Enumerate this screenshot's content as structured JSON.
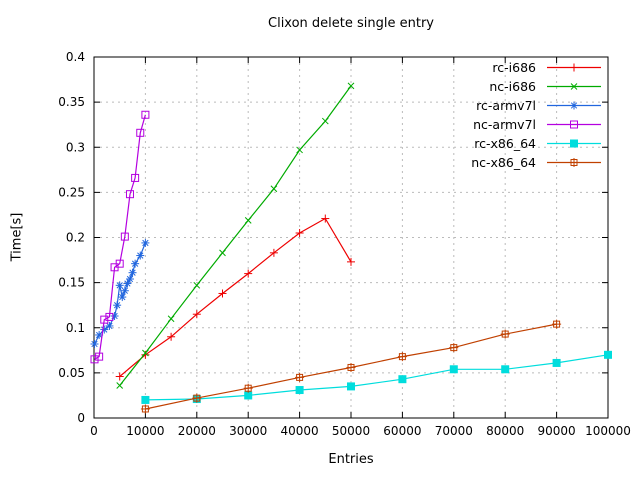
{
  "chart_data": {
    "type": "line",
    "title": "Clixon delete single entry",
    "xlabel": "Entries",
    "ylabel": "Time[s]",
    "xlim": [
      0,
      100000
    ],
    "ylim": [
      0,
      0.4
    ],
    "grid": true,
    "legend_position": "top-right-inside",
    "xticks": {
      "values": [
        0,
        10000,
        20000,
        30000,
        40000,
        50000,
        60000,
        70000,
        80000,
        90000,
        100000
      ],
      "labels": [
        "0",
        "10000",
        "20000",
        "30000",
        "40000",
        "50000",
        "60000",
        "70000",
        "80000",
        "90000",
        "100000"
      ]
    },
    "yticks": {
      "values": [
        0,
        0.05,
        0.1,
        0.15,
        0.2,
        0.25,
        0.3,
        0.35,
        0.4
      ],
      "labels": [
        "0",
        "0.05",
        "0.1",
        "0.15",
        "0.2",
        "0.25",
        "0.3",
        "0.35",
        "0.4"
      ]
    },
    "colors": {
      "background": "#ffffff",
      "axis": "#000000",
      "grid": "#bbbbbb"
    },
    "series": [
      {
        "name": "rc-i686",
        "color": "#ee0000",
        "marker": "plus",
        "points": [
          [
            5000,
            0.046
          ],
          [
            10000,
            0.07
          ],
          [
            15000,
            0.09
          ],
          [
            20000,
            0.115
          ],
          [
            25000,
            0.138
          ],
          [
            30000,
            0.16
          ],
          [
            35000,
            0.183
          ],
          [
            40000,
            0.205
          ],
          [
            45000,
            0.221
          ],
          [
            50000,
            0.173
          ]
        ]
      },
      {
        "name": "nc-i686",
        "color": "#00ab00",
        "marker": "cross",
        "points": [
          [
            5000,
            0.036
          ],
          [
            10000,
            0.072
          ],
          [
            15000,
            0.11
          ],
          [
            20000,
            0.147
          ],
          [
            25000,
            0.183
          ],
          [
            30000,
            0.219
          ],
          [
            35000,
            0.254
          ],
          [
            40000,
            0.297
          ],
          [
            45000,
            0.329
          ],
          [
            50000,
            0.368
          ]
        ]
      },
      {
        "name": "rc-armv7l",
        "color": "#2166de",
        "marker": "asterisk",
        "points": [
          [
            100,
            0.082
          ],
          [
            1000,
            0.092
          ],
          [
            2000,
            0.098
          ],
          [
            3000,
            0.102
          ],
          [
            4000,
            0.113
          ],
          [
            4500,
            0.125
          ],
          [
            5000,
            0.147
          ],
          [
            5500,
            0.134
          ],
          [
            6000,
            0.141
          ],
          [
            6500,
            0.149
          ],
          [
            7000,
            0.154
          ],
          [
            7500,
            0.161
          ],
          [
            8000,
            0.171
          ],
          [
            9000,
            0.18
          ],
          [
            10000,
            0.194
          ]
        ]
      },
      {
        "name": "nc-armv7l",
        "color": "#b400e0",
        "marker": "open-square",
        "points": [
          [
            100,
            0.065
          ],
          [
            1000,
            0.068
          ],
          [
            2000,
            0.109
          ],
          [
            3000,
            0.112
          ],
          [
            4000,
            0.167
          ],
          [
            5000,
            0.171
          ],
          [
            6000,
            0.201
          ],
          [
            7000,
            0.248
          ],
          [
            8000,
            0.266
          ],
          [
            9000,
            0.316
          ],
          [
            10000,
            0.336
          ]
        ]
      },
      {
        "name": "rc-x86_64",
        "color": "#00dddd",
        "marker": "filled-square",
        "points": [
          [
            10000,
            0.02
          ],
          [
            20000,
            0.021
          ],
          [
            30000,
            0.025
          ],
          [
            40000,
            0.031
          ],
          [
            50000,
            0.035
          ],
          [
            60000,
            0.043
          ],
          [
            70000,
            0.054
          ],
          [
            80000,
            0.054
          ],
          [
            90000,
            0.061
          ],
          [
            100000,
            0.07
          ]
        ]
      },
      {
        "name": "nc-x86_64",
        "color": "#c04000",
        "marker": "square-plus",
        "points": [
          [
            10000,
            0.01
          ],
          [
            20000,
            0.022
          ],
          [
            30000,
            0.033
          ],
          [
            40000,
            0.045
          ],
          [
            50000,
            0.056
          ],
          [
            60000,
            0.068
          ],
          [
            70000,
            0.078
          ],
          [
            80000,
            0.093
          ],
          [
            90000,
            0.104
          ]
        ]
      }
    ]
  }
}
